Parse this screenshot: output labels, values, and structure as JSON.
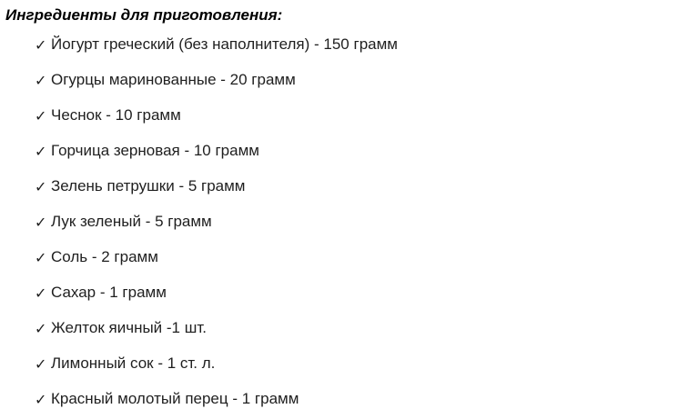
{
  "page": {
    "title": "Ингредиенты для приготовления:",
    "bullet_icon": "✓",
    "items": [
      "Йогурт греческий (без наполнителя) - 150 грамм",
      "Огурцы маринованные - 20 грамм",
      "Чеснок - 10 грамм",
      "Горчица зерновая - 10 грамм",
      "Зелень петрушки - 5 грамм",
      "Лук зеленый - 5 грамм",
      "Соль - 2 грамм",
      "Сахар - 1 грамм",
      "Желток яичный -1 шт.",
      "Лимонный сок - 1 ст. л.",
      "Красный молотый перец - 1 грамм"
    ]
  }
}
